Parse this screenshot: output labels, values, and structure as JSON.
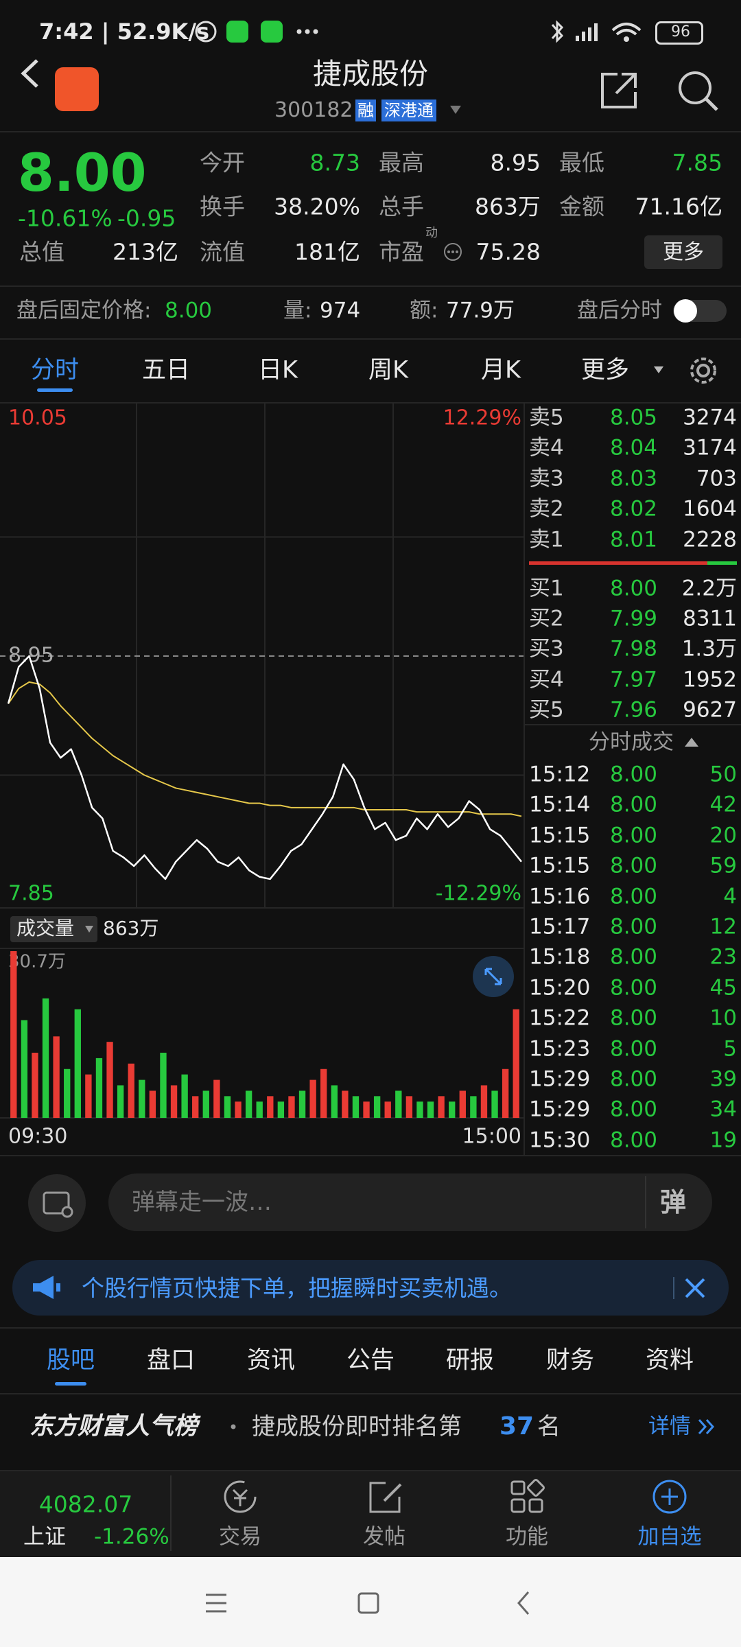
{
  "status_bar": {
    "time": "7:42 | 52.9K/s",
    "battery": "96"
  },
  "header": {
    "title": "捷成股份",
    "code": "300182",
    "tags": [
      "融",
      "深港通"
    ]
  },
  "quote": {
    "price": "8.00",
    "change_pct": "-10.61%",
    "change": "-0.95",
    "fields": [
      {
        "label": "今开",
        "value": "8.73"
      },
      {
        "label": "最高",
        "value": "8.95"
      },
      {
        "label": "最低",
        "value": "7.85"
      },
      {
        "label": "换手",
        "value": "38.20%"
      },
      {
        "label": "总手",
        "value": "863万"
      },
      {
        "label": "金额",
        "value": "71.16亿"
      },
      {
        "label": "总值",
        "value": "213亿"
      },
      {
        "label": "流值",
        "value": "181亿"
      },
      {
        "label": "市盈",
        "badge": "动",
        "value": "75.28"
      }
    ],
    "more": "更多"
  },
  "after_hours": {
    "label": "盘后固定价格:",
    "price": "8.00",
    "vol_label": "量:",
    "vol": "974",
    "amt_label": "额:",
    "amt": "77.9万",
    "toggle": "盘后分时"
  },
  "tabs": [
    "分时",
    "五日",
    "日K",
    "周K",
    "月K",
    "更多"
  ],
  "intraday": {
    "ylim": [
      7.85,
      10.05
    ],
    "prev_close": 8.95,
    "top_pct": "12.29%",
    "bottom_pct": "-12.29%",
    "price_color": "#ffffff",
    "avg_color": "#e6c84a",
    "price": [
      8.73,
      8.9,
      8.95,
      8.8,
      8.55,
      8.48,
      8.52,
      8.4,
      8.25,
      8.2,
      8.05,
      8.02,
      7.98,
      8.03,
      7.97,
      7.92,
      8.0,
      8.05,
      8.1,
      8.06,
      8.0,
      7.98,
      8.02,
      7.96,
      7.93,
      7.92,
      7.98,
      8.05,
      8.08,
      8.15,
      8.22,
      8.3,
      8.45,
      8.38,
      8.25,
      8.15,
      8.18,
      8.1,
      8.12,
      8.2,
      8.15,
      8.22,
      8.16,
      8.2,
      8.28,
      8.24,
      8.15,
      8.12,
      8.06,
      8.0
    ],
    "avg": [
      8.73,
      8.8,
      8.83,
      8.82,
      8.78,
      8.72,
      8.67,
      8.62,
      8.57,
      8.53,
      8.49,
      8.46,
      8.43,
      8.4,
      8.38,
      8.36,
      8.34,
      8.33,
      8.32,
      8.31,
      8.3,
      8.29,
      8.28,
      8.27,
      8.27,
      8.26,
      8.26,
      8.25,
      8.25,
      8.25,
      8.25,
      8.25,
      8.25,
      8.25,
      8.24,
      8.24,
      8.24,
      8.24,
      8.24,
      8.23,
      8.23,
      8.23,
      8.23,
      8.23,
      8.23,
      8.22,
      8.22,
      8.22,
      8.22,
      8.21
    ],
    "volume_label": "成交量",
    "volume_total": "863万",
    "volume_max": {
      "value": 30.7,
      "label": "30.7万"
    },
    "volume": [
      30.7,
      18,
      12,
      22,
      15,
      9,
      20,
      8,
      11,
      14,
      6,
      10,
      7,
      5,
      12,
      6,
      8,
      4,
      5,
      7,
      4,
      3,
      5,
      3,
      4,
      3,
      4,
      5,
      7,
      9,
      6,
      5,
      4,
      3,
      4,
      3,
      5,
      4,
      3,
      3,
      4,
      3,
      5,
      4,
      6,
      5,
      9,
      20
    ],
    "volume_up": [
      true,
      false,
      true,
      false,
      true,
      false,
      false,
      true,
      false,
      true,
      false,
      true,
      false,
      true,
      false,
      true,
      false,
      true,
      false,
      true,
      false,
      true,
      false,
      false,
      true,
      false,
      true,
      false,
      true,
      true,
      false,
      true,
      false,
      true,
      false,
      true,
      false,
      true,
      false,
      false,
      true,
      false,
      true,
      false,
      true,
      false,
      true,
      true
    ],
    "up_color": "#ea3b34",
    "down_color": "#27c93f",
    "start_time": "09:30",
    "end_time": "15:00"
  },
  "order_book": {
    "sells": [
      {
        "label": "卖5",
        "price": "8.05",
        "vol": "3274"
      },
      {
        "label": "卖4",
        "price": "8.04",
        "vol": "3174"
      },
      {
        "label": "卖3",
        "price": "8.03",
        "vol": "703"
      },
      {
        "label": "卖2",
        "price": "8.02",
        "vol": "1604"
      },
      {
        "label": "卖1",
        "price": "8.01",
        "vol": "2228"
      }
    ],
    "buys": [
      {
        "label": "买1",
        "price": "8.00",
        "vol": "2.2万"
      },
      {
        "label": "买2",
        "price": "7.99",
        "vol": "8311"
      },
      {
        "label": "买3",
        "price": "7.98",
        "vol": "1.3万"
      },
      {
        "label": "买4",
        "price": "7.97",
        "vol": "1952"
      },
      {
        "label": "买5",
        "price": "7.96",
        "vol": "9627"
      }
    ]
  },
  "trades": {
    "title": "分时成交",
    "rows": [
      {
        "time": "15:12",
        "price": "8.00",
        "vol": "50"
      },
      {
        "time": "15:14",
        "price": "8.00",
        "vol": "42"
      },
      {
        "time": "15:15",
        "price": "8.00",
        "vol": "20"
      },
      {
        "time": "15:15",
        "price": "8.00",
        "vol": "59"
      },
      {
        "time": "15:16",
        "price": "8.00",
        "vol": "4"
      },
      {
        "time": "15:17",
        "price": "8.00",
        "vol": "12"
      },
      {
        "time": "15:18",
        "price": "8.00",
        "vol": "23"
      },
      {
        "time": "15:20",
        "price": "8.00",
        "vol": "45"
      },
      {
        "time": "15:22",
        "price": "8.00",
        "vol": "10"
      },
      {
        "time": "15:23",
        "price": "8.00",
        "vol": "5"
      },
      {
        "time": "15:29",
        "price": "8.00",
        "vol": "39"
      },
      {
        "time": "15:29",
        "price": "8.00",
        "vol": "34"
      },
      {
        "time": "15:30",
        "price": "8.00",
        "vol": "19"
      }
    ]
  },
  "danmu": {
    "placeholder": "弹幕走一波…",
    "button": "弹"
  },
  "banner": {
    "text": "个股行情页快捷下单，把握瞬时买卖机遇。"
  },
  "bottom_tabs": [
    "股吧",
    "盘口",
    "资讯",
    "公告",
    "研报",
    "财务",
    "资料"
  ],
  "ranking": {
    "brand": "东方财富人气榜",
    "text": "捷成股份即时排名第",
    "rank": "37",
    "suffix": "名",
    "detail": "详情"
  },
  "bottom_nav": {
    "index_value": "4082.07",
    "index_name": "上证",
    "index_pct": "-1.26%",
    "items": [
      "交易",
      "发帖",
      "功能",
      "加自选"
    ]
  }
}
